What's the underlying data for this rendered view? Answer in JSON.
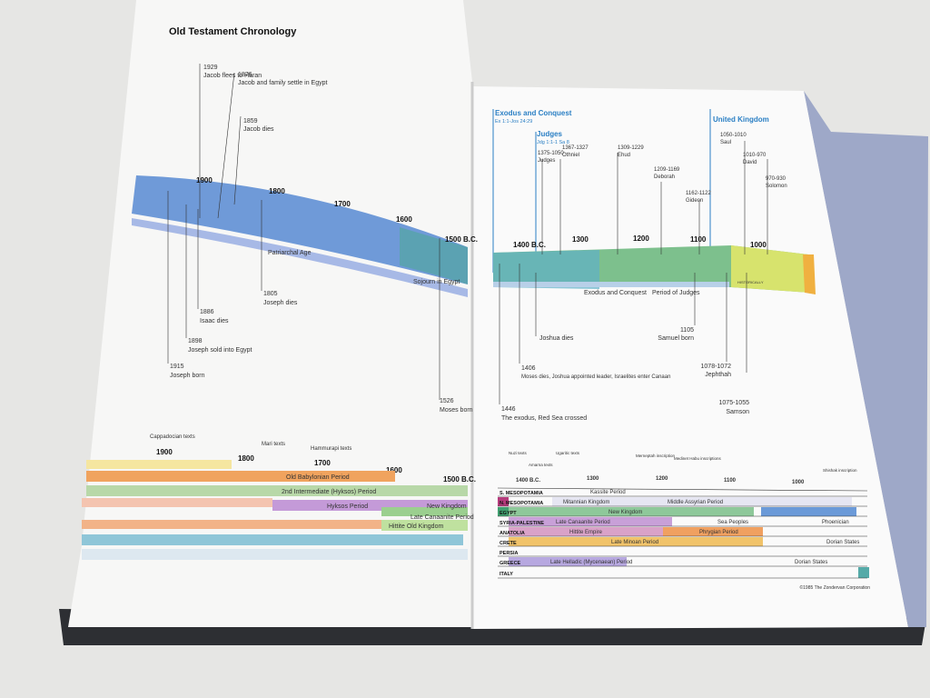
{
  "left_page": {
    "title": "Old Testament Chronology",
    "scale": [
      "1900",
      "1800",
      "1700",
      "1600",
      "1500 B.C."
    ],
    "band_labels": [
      "Patriarchal Age",
      "Sojourn in Egypt"
    ],
    "events": [
      {
        "date": "1929",
        "text": "Jacob flees to Haran"
      },
      {
        "date": "1876",
        "text": "Jacob and family settle in Egypt"
      },
      {
        "date": "1859",
        "text": "Jacob dies"
      },
      {
        "date": "1805",
        "text": "Joseph dies"
      },
      {
        "date": "1886",
        "text": "Isaac dies"
      },
      {
        "date": "1898",
        "text": "Joseph sold into Egypt"
      },
      {
        "date": "1915",
        "text": "Joseph born"
      },
      {
        "date": "1526",
        "text": "Moses born"
      }
    ],
    "texts_scale": [
      {
        "year": "1900",
        "label": "Cappadocian texts"
      },
      {
        "year": "1800",
        "label": "Mari texts"
      },
      {
        "year": "1700",
        "label": "Hammurapi texts"
      },
      {
        "year": "1600",
        "label": ""
      },
      {
        "year": "1500 B.C.",
        "label": ""
      }
    ],
    "periods": [
      "Old Babylonian Period",
      "2nd Intermediate (Hyksos) Period",
      "Hyksos Period",
      "New Kingdom",
      "Late Canaanite Period",
      "Hittite Old Kingdom"
    ]
  },
  "right_page": {
    "sections": [
      {
        "title": "Exodus and Conquest",
        "ref": "Ex 1:1-Jos 24:29"
      },
      {
        "title": "Judges",
        "ref": "Jdg 1:1-1 Sa 8"
      },
      {
        "title": "United Kingdom",
        "ref": ""
      }
    ],
    "top_events": [
      {
        "date": "1375-1050",
        "text": "Judges"
      },
      {
        "date": "1367-1327",
        "text": "Othniel"
      },
      {
        "date": "1309-1229",
        "text": "Ehud"
      },
      {
        "date": "1209-1169",
        "text": "Deborah"
      },
      {
        "date": "1162-1122",
        "text": "Gideon"
      },
      {
        "date": "1050-1010",
        "text": "Saul"
      },
      {
        "date": "1010-970",
        "text": "David"
      },
      {
        "date": "970-930",
        "text": "Solomon"
      }
    ],
    "scale": [
      "1400 B.C.",
      "1300",
      "1200",
      "1100",
      "1000"
    ],
    "band_labels": [
      "Exodus and Conquest",
      "Period of Judges",
      "HISTORICALLY"
    ],
    "bottom_events": [
      {
        "date": "",
        "text": "Joshua dies"
      },
      {
        "date": "1406",
        "text": "Moses dies, Joshua appointed leader, Israelites enter Canaan"
      },
      {
        "date": "1446",
        "text": "The exodus, Red Sea crossed"
      },
      {
        "date": "1105",
        "text": "Samuel born"
      },
      {
        "date": "1078-1072",
        "text": "Jephthah"
      },
      {
        "date": "1075-1055",
        "text": "Samson"
      }
    ],
    "texts_scale": [
      "Nuzi texts",
      "Amarna texts",
      "Ugaritic texts",
      "Merneptah inscription",
      "Medinet Habu inscriptions",
      "Shishak inscription"
    ],
    "table_scale": [
      "1400 B.C.",
      "1300",
      "1200",
      "1100",
      "1000"
    ],
    "regions": [
      {
        "name": "S. MESOPOTAMIA",
        "periods": [
          "Kassite Period"
        ]
      },
      {
        "name": "N. MESOPOTAMIA",
        "periods": [
          "Mitannian Kingdom",
          "Middle Assyrian Period"
        ]
      },
      {
        "name": "EGYPT",
        "periods": [
          "New Kingdom"
        ]
      },
      {
        "name": "SYRIA-PALESTINE",
        "periods": [
          "Late Canaanite Period",
          "Sea Peoples",
          "Phoenician"
        ]
      },
      {
        "name": "ANATOLIA",
        "periods": [
          "Hittite Empire",
          "Phrygian Period"
        ]
      },
      {
        "name": "CRETE",
        "periods": [
          "Late Minoan Period",
          "Dorian States"
        ]
      },
      {
        "name": "PERSIA",
        "periods": []
      },
      {
        "name": "GREECE",
        "periods": [
          "Late Helladic (Mycenaean) Period",
          "Dorian States"
        ]
      },
      {
        "name": "ITALY",
        "periods": []
      }
    ],
    "copyright": "©1985 The Zondervan Corporation"
  }
}
